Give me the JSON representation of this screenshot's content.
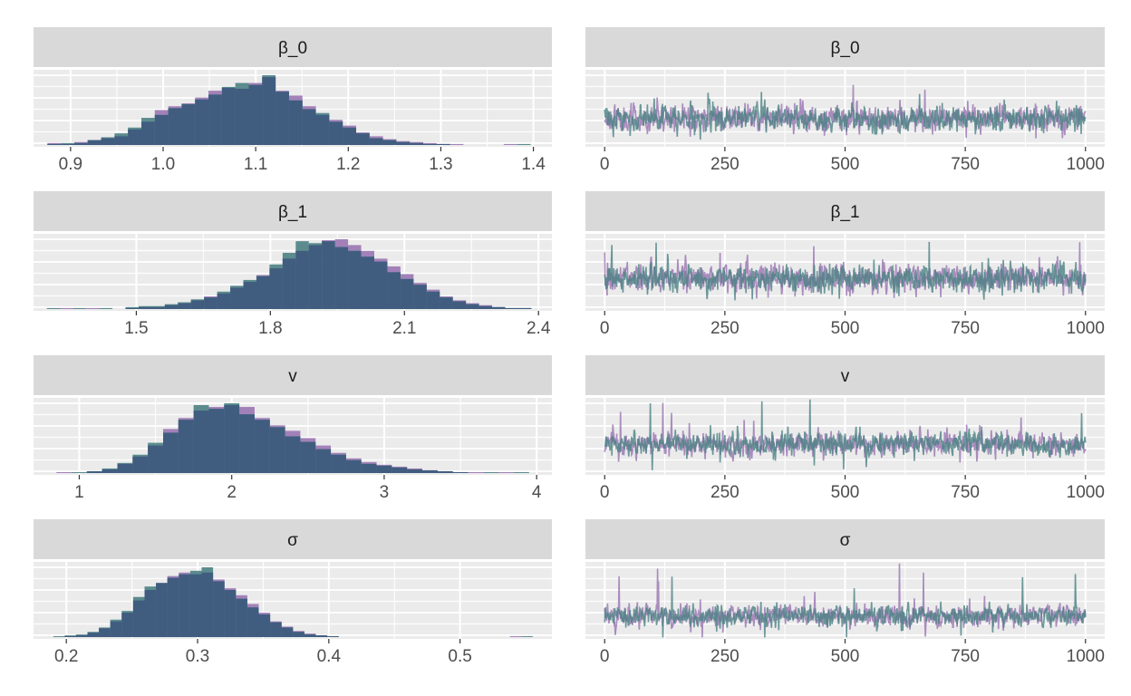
{
  "colors": {
    "chain_a": "#9e7bb5",
    "chain_b": "#4b8183",
    "overlap": "#3f5a7f",
    "strip_bg": "#d9d9d9",
    "panel_bg": "#ebebeb",
    "grid": "#ffffff",
    "axis_text": "#4d4d4d"
  },
  "chart_data": [
    {
      "type": "histogram",
      "facet": "β_0",
      "xlim": [
        0.86,
        1.42
      ],
      "xticks": [
        0.9,
        1.0,
        1.1,
        1.2,
        1.3,
        1.4
      ],
      "tick_labels": [
        "0.9",
        "1.0",
        "1.1",
        "1.2",
        "1.3",
        "1.4"
      ],
      "bin_start": 0.875,
      "bin_width": 0.0145,
      "series": [
        {
          "values": [
            2,
            1,
            3,
            5,
            7,
            9,
            16,
            24,
            36,
            40,
            43,
            49,
            56,
            59,
            58,
            64,
            70,
            56,
            51,
            40,
            31,
            26,
            20,
            13,
            9,
            6,
            4,
            3,
            2,
            1,
            1,
            0,
            0,
            0,
            1,
            0
          ]
        },
        {
          "values": [
            1,
            2,
            2,
            5,
            8,
            12,
            18,
            28,
            31,
            38,
            42,
            47,
            52,
            60,
            64,
            62,
            72,
            55,
            46,
            37,
            33,
            24,
            18,
            12,
            7,
            5,
            3,
            2,
            1,
            1,
            0,
            0,
            0,
            0,
            0,
            1
          ]
        }
      ]
    },
    {
      "type": "line",
      "facet": "β_0",
      "xlim": [
        -40,
        1040
      ],
      "xticks": [
        0,
        250,
        500,
        750,
        1000
      ],
      "tick_labels": [
        "0",
        "250",
        "500",
        "750",
        "1000"
      ],
      "center": 0.37,
      "spread": 0.16,
      "spike": 0.44,
      "series": [
        {
          "seed": 11
        },
        {
          "seed": 29
        }
      ]
    },
    {
      "type": "histogram",
      "facet": "β_1",
      "xlim": [
        1.27,
        2.43
      ],
      "xticks": [
        1.5,
        1.8,
        2.1,
        2.4
      ],
      "tick_labels": [
        "1.5",
        "1.8",
        "2.1",
        "2.4"
      ],
      "bin_start": 1.3,
      "bin_width": 0.0293,
      "series": [
        {
          "values": [
            0,
            1,
            0,
            1,
            0,
            0,
            1,
            2,
            2,
            4,
            6,
            9,
            13,
            16,
            22,
            28,
            35,
            42,
            52,
            60,
            66,
            71,
            72,
            66,
            60,
            52,
            44,
            36,
            27,
            20,
            13,
            9,
            6,
            4,
            2,
            1,
            1,
            0,
            0,
            0
          ]
        },
        {
          "values": [
            1,
            0,
            1,
            0,
            1,
            0,
            2,
            3,
            3,
            5,
            7,
            10,
            12,
            18,
            24,
            30,
            34,
            46,
            58,
            70,
            68,
            70,
            64,
            60,
            54,
            49,
            38,
            31,
            25,
            18,
            12,
            8,
            5,
            3,
            2,
            1,
            1,
            0,
            0,
            0
          ]
        }
      ]
    },
    {
      "type": "line",
      "facet": "β_1",
      "xlim": [
        -40,
        1040
      ],
      "xticks": [
        0,
        250,
        500,
        750,
        1000
      ],
      "tick_labels": [
        "0",
        "250",
        "500",
        "750",
        "1000"
      ],
      "center": 0.42,
      "spread": 0.17,
      "spike": 0.48,
      "series": [
        {
          "seed": 47
        },
        {
          "seed": 83
        }
      ]
    },
    {
      "type": "histogram",
      "facet": "v",
      "xlim": [
        0.7,
        4.1
      ],
      "xticks": [
        1,
        2,
        3,
        4
      ],
      "tick_labels": [
        "1",
        "2",
        "3",
        "4"
      ],
      "bin_start": 0.85,
      "bin_width": 0.1,
      "series": [
        {
          "values": [
            1,
            0,
            2,
            4,
            10,
            18,
            30,
            48,
            60,
            68,
            72,
            74,
            72,
            60,
            52,
            46,
            38,
            30,
            22,
            16,
            12,
            9,
            7,
            5,
            3,
            2,
            1,
            1,
            0,
            1,
            0,
            0,
            0,
            0
          ]
        },
        {
          "values": [
            0,
            1,
            2,
            5,
            11,
            20,
            33,
            44,
            58,
            74,
            70,
            76,
            64,
            58,
            50,
            40,
            34,
            26,
            20,
            14,
            10,
            8,
            6,
            4,
            3,
            2,
            1,
            0,
            1,
            0,
            1,
            0,
            0,
            0
          ]
        }
      ]
    },
    {
      "type": "line",
      "facet": "v",
      "xlim": [
        -40,
        1040
      ],
      "xticks": [
        0,
        250,
        500,
        750,
        1000
      ],
      "tick_labels": [
        "0",
        "250",
        "500",
        "750",
        "1000"
      ],
      "center": 0.4,
      "spread": 0.14,
      "spike": 0.62,
      "series": [
        {
          "seed": 101
        },
        {
          "seed": 137
        }
      ]
    },
    {
      "type": "histogram",
      "facet": "σ",
      "xlim": [
        0.175,
        0.57
      ],
      "xticks": [
        0.2,
        0.3,
        0.4,
        0.5
      ],
      "tick_labels": [
        "0.2",
        "0.3",
        "0.4",
        "0.5"
      ],
      "bin_start": 0.19,
      "bin_width": 0.0087,
      "series": [
        {
          "values": [
            0,
            1,
            2,
            5,
            10,
            18,
            28,
            42,
            54,
            62,
            70,
            74,
            72,
            74,
            66,
            56,
            48,
            38,
            28,
            18,
            12,
            7,
            4,
            2,
            1,
            0,
            0,
            0,
            0,
            0,
            0,
            0,
            0,
            0,
            0,
            0,
            0,
            0,
            0,
            0,
            1,
            0
          ]
        },
        {
          "values": [
            1,
            2,
            3,
            6,
            11,
            20,
            30,
            46,
            58,
            62,
            68,
            72,
            76,
            80,
            64,
            54,
            44,
            34,
            26,
            17,
            11,
            6,
            3,
            2,
            1,
            0,
            0,
            0,
            0,
            0,
            0,
            0,
            0,
            0,
            0,
            0,
            0,
            0,
            0,
            0,
            0,
            1
          ]
        }
      ]
    },
    {
      "type": "line",
      "facet": "σ",
      "xlim": [
        -40,
        1040
      ],
      "xticks": [
        0,
        250,
        500,
        750,
        1000
      ],
      "tick_labels": [
        "0",
        "250",
        "500",
        "750",
        "1000"
      ],
      "center": 0.3,
      "spread": 0.13,
      "spike": 0.75,
      "series": [
        {
          "seed": 173
        },
        {
          "seed": 211
        }
      ]
    }
  ]
}
